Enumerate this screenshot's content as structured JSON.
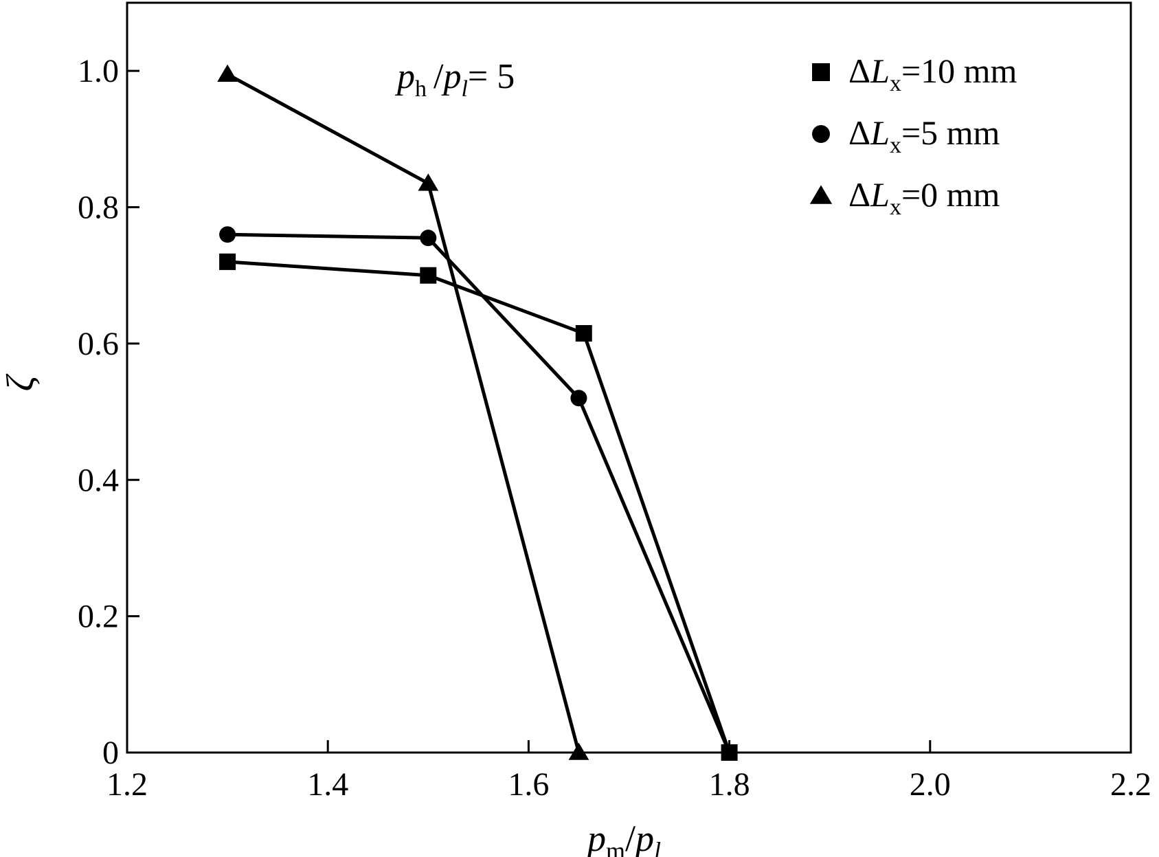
{
  "chart_data": {
    "type": "line",
    "xlim": [
      1.2,
      2.2
    ],
    "ylim": [
      0,
      1.1
    ],
    "xticks": [
      "1.2",
      "1.4",
      "1.6",
      "1.8",
      "2.0",
      "2.2"
    ],
    "xtick_values": [
      1.2,
      1.4,
      1.6,
      1.8,
      2.0,
      2.2
    ],
    "yticks": [
      "0",
      "0.2",
      "0.4",
      "0.6",
      "0.8",
      "1.0"
    ],
    "ytick_values": [
      0,
      0.2,
      0.4,
      0.6,
      0.8,
      1.0
    ],
    "xlabel": {
      "base1": "p",
      "sub1": "m",
      "sep": "/",
      "base2": "p",
      "sub2": "l"
    },
    "ylabel": "ζ",
    "annotation": {
      "base1": "p",
      "sub1": "h",
      "sep": "/",
      "base2": "p",
      "sub2": "l",
      "rest": "= 5"
    },
    "grid": false,
    "legend_position": "top-right",
    "series": [
      {
        "name": "ΔLx=10 mm",
        "label_parts": {
          "delta": "Δ",
          "L": "L",
          "sub": "x",
          "rest": "=10 mm"
        },
        "marker": "square",
        "x": [
          1.3,
          1.5,
          1.655,
          1.8
        ],
        "y": [
          0.72,
          0.7,
          0.615,
          0.0
        ]
      },
      {
        "name": "ΔLx=5 mm",
        "label_parts": {
          "delta": "Δ",
          "L": "L",
          "sub": "x",
          "rest": "=5 mm"
        },
        "marker": "circle",
        "x": [
          1.3,
          1.5,
          1.65,
          1.8
        ],
        "y": [
          0.76,
          0.755,
          0.52,
          0.0
        ]
      },
      {
        "name": "ΔLx=0 mm",
        "label_parts": {
          "delta": "Δ",
          "L": "L",
          "sub": "x",
          "rest": "=0 mm"
        },
        "marker": "triangle",
        "x": [
          1.3,
          1.5,
          1.65
        ],
        "y": [
          0.995,
          0.835,
          0.0
        ]
      }
    ]
  }
}
